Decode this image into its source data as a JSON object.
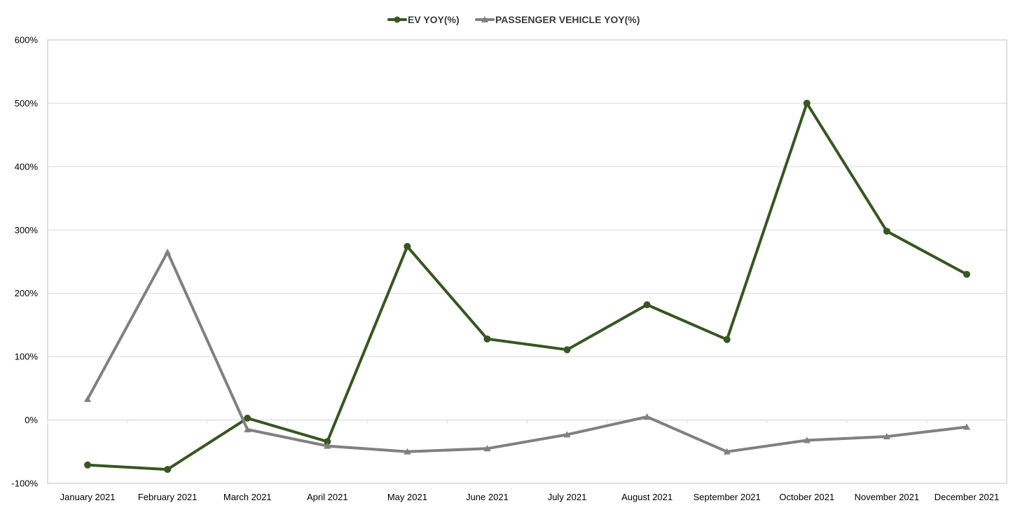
{
  "chart_data": {
    "type": "line",
    "title": "",
    "xlabel": "",
    "ylabel": "",
    "categories": [
      "January 2021",
      "February 2021",
      "March 2021",
      "April 2021",
      "May 2021",
      "June 2021",
      "July 2021",
      "August 2021",
      "September 2021",
      "October 2021",
      "November 2021",
      "December 2021"
    ],
    "ylim": [
      -100,
      600
    ],
    "yticks": [
      -100,
      0,
      100,
      200,
      300,
      400,
      500,
      600
    ],
    "ytick_labels": [
      "-100%",
      "0%",
      "100%",
      "200%",
      "300%",
      "400%",
      "500%",
      "600%"
    ],
    "grid": "horizontal",
    "legend_position": "top-center",
    "series": [
      {
        "name": "EV YOY(%)",
        "color": "#375623",
        "marker": "circle",
        "values": [
          -71,
          -78,
          3,
          -34,
          274,
          128,
          111,
          182,
          127,
          500,
          298,
          230
        ]
      },
      {
        "name": "PASSENGER VEHICLE YOY(%)",
        "color": "#808080",
        "marker": "triangle",
        "values": [
          33,
          265,
          -15,
          -41,
          -50,
          -45,
          -23,
          5,
          -50,
          -32,
          -26,
          -11
        ]
      }
    ]
  }
}
